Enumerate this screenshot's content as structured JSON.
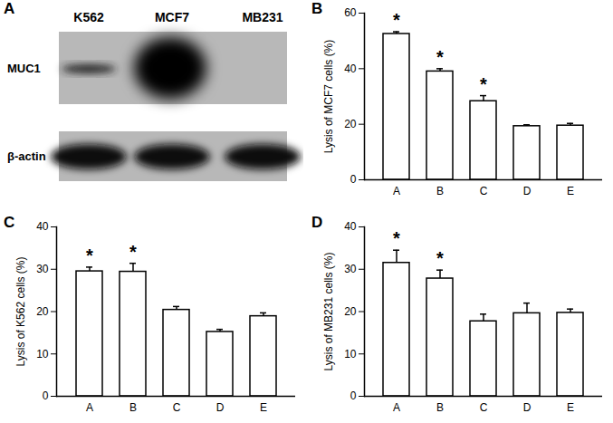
{
  "blot": {
    "title": "A",
    "lanes": [
      "K562",
      "MCF7",
      "MB231"
    ],
    "rows": [
      "MUC1",
      "β-actin"
    ]
  },
  "chart_data": [
    {
      "type": "bar",
      "title": "B",
      "ylabel": "Lysis of MCF7 cells (%)",
      "categories": [
        "A",
        "B",
        "C",
        "D",
        "E"
      ],
      "values": [
        52.5,
        39,
        28.3,
        19.3,
        19.5
      ],
      "errors": [
        0.8,
        1.0,
        2.0,
        0.5,
        0.8
      ],
      "annotations": [
        "*",
        "*",
        "*",
        null,
        null
      ],
      "color": "#ffffff",
      "ylim": [
        0,
        60
      ],
      "yticks": [
        0,
        20,
        40,
        60
      ]
    },
    {
      "type": "bar",
      "title": "C",
      "ylabel": "Lysis of K562 cells (%)",
      "categories": [
        "A",
        "B",
        "C",
        "D",
        "E"
      ],
      "values": [
        29.5,
        29.4,
        20.4,
        15.2,
        18.9
      ],
      "errors": [
        1.0,
        2.0,
        0.8,
        0.6,
        0.8
      ],
      "annotations": [
        "*",
        "*",
        null,
        null,
        null
      ],
      "color": "#ffffff",
      "ylim": [
        0,
        40
      ],
      "yticks": [
        0,
        10,
        20,
        30,
        40
      ]
    },
    {
      "type": "bar",
      "title": "D",
      "ylabel": "Lysis of MB231 cells (%)",
      "categories": [
        "A",
        "B",
        "C",
        "D",
        "E"
      ],
      "values": [
        31.5,
        27.8,
        17.7,
        19.6,
        19.7
      ],
      "errors": [
        3.0,
        2.0,
        1.7,
        2.4,
        0.9
      ],
      "annotations": [
        "*",
        "*",
        null,
        null,
        null
      ],
      "color": "#ffffff",
      "ylim": [
        0,
        40
      ],
      "yticks": [
        0,
        10,
        20,
        30,
        40
      ]
    }
  ]
}
